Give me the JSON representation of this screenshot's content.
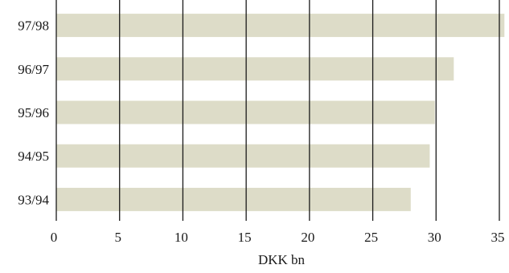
{
  "chart_data": {
    "type": "bar",
    "orientation": "horizontal",
    "categories": [
      "97/98",
      "96/97",
      "95/96",
      "94/95",
      "93/94"
    ],
    "values": [
      35.4,
      31.4,
      29.9,
      29.5,
      28.0
    ],
    "xlabel": "DKK bn",
    "ylabel": "",
    "title": "",
    "xlim": [
      0,
      35.5
    ],
    "xticks": [
      0,
      5,
      10,
      15,
      20,
      25,
      30,
      35
    ],
    "grid": "vertical",
    "bar_color": "#dddcc8",
    "grid_color": "#1a1a1a"
  }
}
